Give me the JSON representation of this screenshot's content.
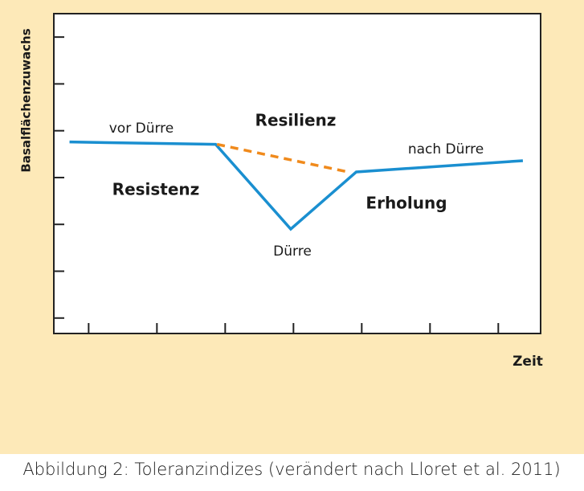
{
  "chart_data": {
    "type": "line",
    "y_label": "Basalflächenzuwachs",
    "x_label": "Zeit",
    "caption": "Abbildung 2: Toleranzindizes (verändert nach Lloret et al. 2011)",
    "annotations": [
      "vor Dürre",
      "Resilienz",
      "nach Dürre",
      "Resistenz",
      "Dürre",
      "Erholung"
    ],
    "xlim": [
      0.49,
      7.62
    ],
    "ylim": [
      0.67,
      7.5
    ],
    "xticks": [
      1,
      2,
      3,
      4,
      5,
      6,
      7
    ],
    "yticks": [
      1,
      2,
      3,
      4,
      5,
      6,
      7
    ],
    "series": [
      {
        "color": "#1a8fd0",
        "dash": false,
        "x": [
          0.72,
          2.86,
          3.96,
          4.92,
          7.36
        ],
        "values": [
          4.76,
          4.71,
          2.9,
          4.12,
          4.36
        ]
      },
      {
        "color": "#f08a1c",
        "dash": true,
        "x": [
          2.88,
          4.8
        ],
        "values": [
          4.71,
          4.12
        ]
      }
    ]
  }
}
